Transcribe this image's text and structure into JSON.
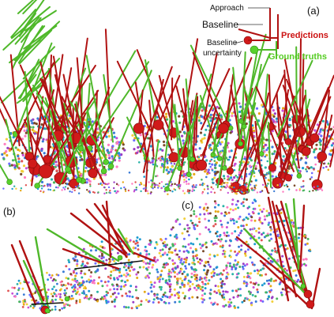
{
  "panels": [
    {
      "label": "(a)"
    },
    {
      "label": "(b)"
    },
    {
      "label": "(c)"
    }
  ],
  "legend": {
    "approach": "Approach",
    "baseline": "Baseline",
    "baseline_uncertainty_line1": "Baseline",
    "baseline_uncertainty_line2": "uncertainty",
    "predictions": "Predictions",
    "ground_truths": "Ground truths"
  },
  "colors": {
    "prediction": "#b01212",
    "prediction_ball": "#d01a1a",
    "ground_truth": "#4fb82a",
    "ground_truth_ball": "#58d02c",
    "legend_prediction_text": "#cc1111",
    "legend_ground_truth_text": "#55cc22",
    "background": "#ffffff"
  }
}
